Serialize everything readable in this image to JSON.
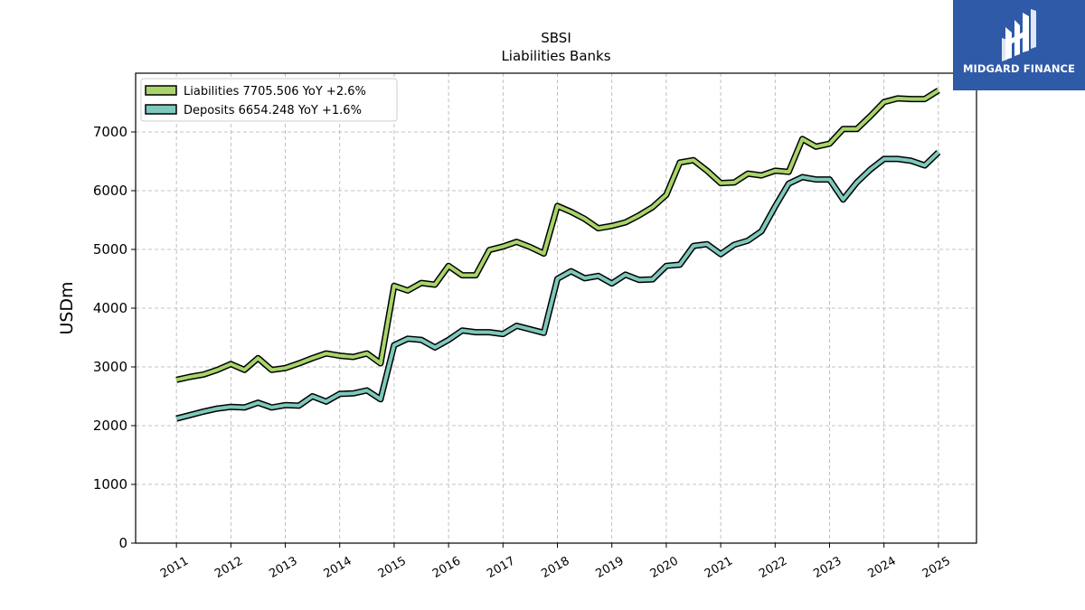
{
  "chart_data": {
    "type": "line",
    "title": "SBSI",
    "subtitle": "Liabilities Banks",
    "ylabel": "USDm",
    "xlabel": "",
    "ylim": [
      0,
      8000
    ],
    "xlim": [
      2010.25,
      2025.7
    ],
    "yticks": [
      0,
      1000,
      2000,
      3000,
      4000,
      5000,
      6000,
      7000
    ],
    "xticks": [
      "2011",
      "2012",
      "2013",
      "2014",
      "2015",
      "2016",
      "2017",
      "2018",
      "2019",
      "2020",
      "2021",
      "2022",
      "2023",
      "2024",
      "2025"
    ],
    "grid": true,
    "legend_position": "top-left",
    "legend": [
      "Liabilities  7705.506 YoY +2.6%",
      "Deposits  6654.248 YoY +1.6%"
    ],
    "series": [
      {
        "name": "Liabilities",
        "color": "#a8d46a",
        "x": [
          2011.0,
          2011.25,
          2011.5,
          2011.75,
          2012.0,
          2012.25,
          2012.5,
          2012.75,
          2013.0,
          2013.25,
          2013.5,
          2013.75,
          2014.0,
          2014.25,
          2014.5,
          2014.75,
          2015.0,
          2015.25,
          2015.5,
          2015.75,
          2016.0,
          2016.25,
          2016.5,
          2016.75,
          2017.0,
          2017.25,
          2017.5,
          2017.75,
          2018.0,
          2018.25,
          2018.5,
          2018.75,
          2019.0,
          2019.25,
          2019.5,
          2019.75,
          2020.0,
          2020.25,
          2020.5,
          2020.75,
          2021.0,
          2021.25,
          2021.5,
          2021.75,
          2022.0,
          2022.25,
          2022.5,
          2022.75,
          2023.0,
          2023.25,
          2023.5,
          2023.75,
          2024.0,
          2024.25,
          2024.5,
          2024.75,
          2025.0
        ],
        "values": [
          2780,
          2830,
          2870,
          2950,
          3050,
          2950,
          3150,
          2950,
          2980,
          3060,
          3150,
          3230,
          3190,
          3170,
          3230,
          3060,
          4380,
          4300,
          4430,
          4400,
          4720,
          4560,
          4560,
          4990,
          5050,
          5130,
          5040,
          4930,
          5740,
          5640,
          5520,
          5360,
          5400,
          5460,
          5580,
          5720,
          5930,
          6480,
          6520,
          6340,
          6130,
          6140,
          6290,
          6260,
          6340,
          6320,
          6880,
          6750,
          6800,
          7050,
          7050,
          7270,
          7510,
          7570,
          7560,
          7560,
          7705.506
        ]
      },
      {
        "name": "Deposits",
        "color": "#7ec8bc",
        "x": [
          2011.0,
          2011.25,
          2011.5,
          2011.75,
          2012.0,
          2012.25,
          2012.5,
          2012.75,
          2013.0,
          2013.25,
          2013.5,
          2013.75,
          2014.0,
          2014.25,
          2014.5,
          2014.75,
          2015.0,
          2015.25,
          2015.5,
          2015.75,
          2016.0,
          2016.25,
          2016.5,
          2016.75,
          2017.0,
          2017.25,
          2017.5,
          2017.75,
          2018.0,
          2018.25,
          2018.5,
          2018.75,
          2019.0,
          2019.25,
          2019.5,
          2019.75,
          2020.0,
          2020.25,
          2020.5,
          2020.75,
          2021.0,
          2021.25,
          2021.5,
          2021.75,
          2022.0,
          2022.25,
          2022.5,
          2022.75,
          2023.0,
          2023.25,
          2023.5,
          2023.75,
          2024.0,
          2024.25,
          2024.5,
          2024.75,
          2025.0
        ],
        "values": [
          2120,
          2180,
          2240,
          2290,
          2320,
          2310,
          2390,
          2310,
          2350,
          2340,
          2500,
          2410,
          2540,
          2550,
          2600,
          2450,
          3370,
          3480,
          3460,
          3330,
          3460,
          3620,
          3590,
          3590,
          3560,
          3700,
          3640,
          3580,
          4500,
          4630,
          4510,
          4550,
          4420,
          4570,
          4480,
          4490,
          4720,
          4740,
          5060,
          5090,
          4920,
          5080,
          5150,
          5310,
          5730,
          6120,
          6230,
          6190,
          6190,
          5850,
          6140,
          6360,
          6540,
          6540,
          6510,
          6430,
          6654.248
        ]
      }
    ]
  },
  "logo": {
    "text": "MIDGARD FINANCE"
  }
}
